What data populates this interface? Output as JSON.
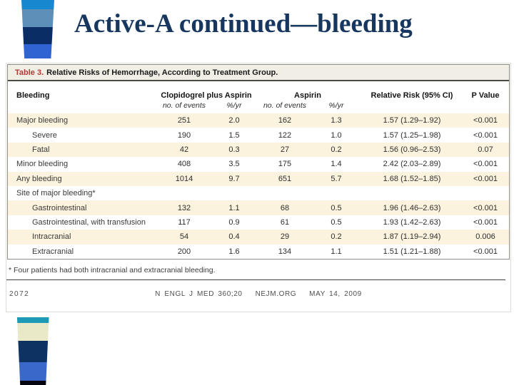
{
  "slide": {
    "title": "Active-A continued—bleeding"
  },
  "decor": {
    "top_bar_colors": [
      "#1788cf",
      "#5e8fb8",
      "#0b2d66",
      "#2f64d2"
    ],
    "bottom_bar_colors": [
      "#1f9ab6",
      "#e9e9c8",
      "#0e3363",
      "#3a68ca",
      "#05050f"
    ]
  },
  "colors": {
    "slide_title": "#17375e",
    "table_label_red": "#b03b33",
    "row_shading_cream": "#fbf3dd",
    "title_row_bg": "#f1eee6"
  },
  "figure": {
    "table": {
      "label": "Table 3.",
      "title": "Relative Risks of Hemorrhage, According to Treatment Group.",
      "col_headers": {
        "bleeding": "Bleeding",
        "group1": "Clopidogrel plus Aspirin",
        "group2": "Aspirin",
        "relative_risk": "Relative Risk (95% CI)",
        "p_value": "P Value",
        "sub_events": "no. of events",
        "sub_rate": "%/yr"
      },
      "rows": [
        {
          "label": "Major bleeding",
          "indent": 0,
          "shaded": true,
          "events1": "251",
          "rate1": "2.0",
          "events2": "162",
          "rate2": "1.3",
          "rr": "1.57 (1.29–1.92)",
          "p": "<0.001"
        },
        {
          "label": "Severe",
          "indent": 1,
          "shaded": false,
          "events1": "190",
          "rate1": "1.5",
          "events2": "122",
          "rate2": "1.0",
          "rr": "1.57 (1.25–1.98)",
          "p": "<0.001"
        },
        {
          "label": "Fatal",
          "indent": 1,
          "shaded": true,
          "events1": "42",
          "rate1": "0.3",
          "events2": "27",
          "rate2": "0.2",
          "rr": "1.56 (0.96–2.53)",
          "p": "0.07"
        },
        {
          "label": "Minor bleeding",
          "indent": 0,
          "shaded": false,
          "events1": "408",
          "rate1": "3.5",
          "events2": "175",
          "rate2": "1.4",
          "rr": "2.42 (2.03–2.89)",
          "p": "<0.001"
        },
        {
          "label": "Any bleeding",
          "indent": 0,
          "shaded": true,
          "events1": "1014",
          "rate1": "9.7",
          "events2": "651",
          "rate2": "5.7",
          "rr": "1.68 (1.52–1.85)",
          "p": "<0.001"
        },
        {
          "label": "Site of major bleeding*",
          "indent": 0,
          "shaded": false,
          "events1": "",
          "rate1": "",
          "events2": "",
          "rate2": "",
          "rr": "",
          "p": ""
        },
        {
          "label": "Gastrointestinal",
          "indent": 1,
          "shaded": true,
          "events1": "132",
          "rate1": "1.1",
          "events2": "68",
          "rate2": "0.5",
          "rr": "1.96 (1.46–2.63)",
          "p": "<0.001"
        },
        {
          "label": "Gastrointestinal, with transfusion",
          "indent": 1,
          "shaded": false,
          "events1": "117",
          "rate1": "0.9",
          "events2": "61",
          "rate2": "0.5",
          "rr": "1.93 (1.42–2.63)",
          "p": "<0.001"
        },
        {
          "label": "Intracranial",
          "indent": 1,
          "shaded": true,
          "events1": "54",
          "rate1": "0.4",
          "events2": "29",
          "rate2": "0.2",
          "rr": "1.87 (1.19–2.94)",
          "p": "0.006"
        },
        {
          "label": "Extracranial",
          "indent": 1,
          "shaded": false,
          "events1": "200",
          "rate1": "1.6",
          "events2": "134",
          "rate2": "1.1",
          "rr": "1.51 (1.21–1.88)",
          "p": "<0.001"
        }
      ]
    },
    "footnote": "* Four patients had both intracranial and extracranial bleeding.",
    "footer": {
      "page_number": "2072",
      "journal": "N ENGL J MED 360;20",
      "site": "NEJM.ORG",
      "date": "MAY 14, 2009"
    }
  }
}
